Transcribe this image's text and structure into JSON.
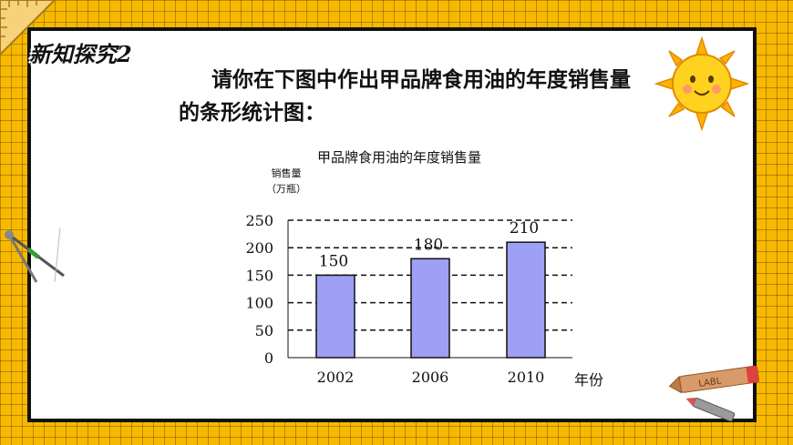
{
  "header": {
    "section_title": "新知探究2"
  },
  "prompt": {
    "text": "请你在下图中作出甲品牌食用油的年度销售量的条形统计图："
  },
  "chart_data": {
    "type": "bar",
    "title": "甲品牌食用油的年度销售量",
    "ylabel_line1": "销售量",
    "ylabel_line2": "（万瓶）",
    "xlabel": "年份",
    "categories": [
      "2002",
      "2006",
      "2010"
    ],
    "values": [
      150,
      180,
      210
    ],
    "data_labels": [
      "150",
      "180",
      "210"
    ],
    "yticks": [
      0,
      50,
      100,
      150,
      200,
      250
    ],
    "ylim": [
      0,
      250
    ],
    "grid": "dashed horizontal",
    "bar_color": "#9da0f5"
  },
  "decor": {
    "sun_icon": "sun-icon",
    "compass_icon": "compass-icon",
    "crayon_label": "LABL",
    "background_color": "#f7b800"
  }
}
